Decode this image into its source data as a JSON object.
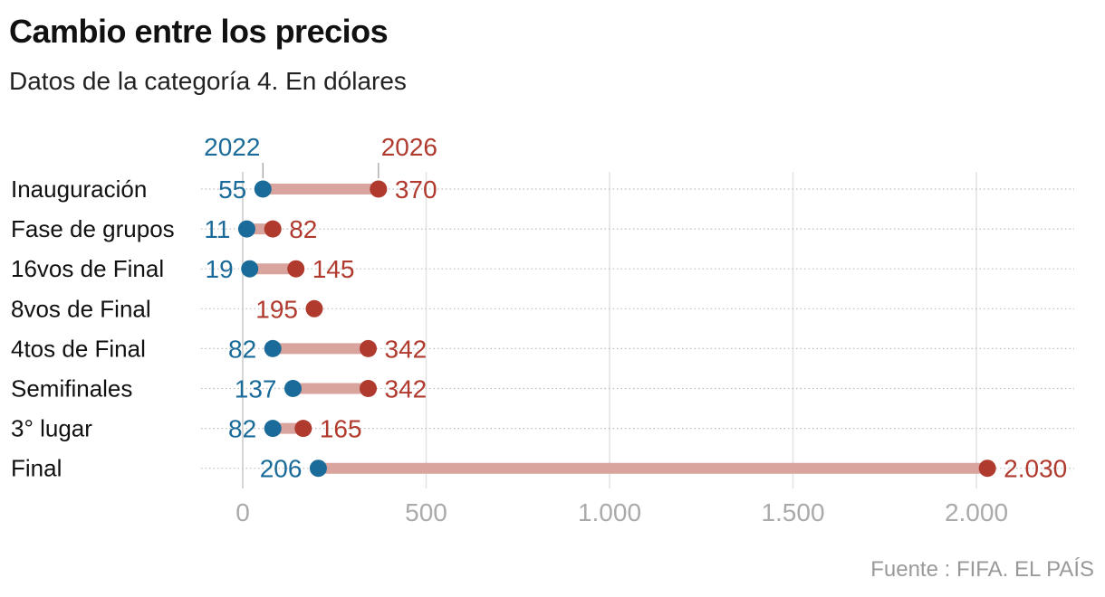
{
  "title": "Cambio entre los precios",
  "subtitle": "Datos de la categoría 4. En dólares",
  "source": "Fuente : FIFA. EL PAÍS",
  "colors": {
    "y2022": "#1a6b9a",
    "y2026": "#b03a2e",
    "connector": "#d9a39e"
  },
  "chart_data": {
    "type": "dumbbell",
    "xlim": [
      0,
      2250
    ],
    "xticks": [
      0,
      500,
      1000,
      1500,
      2000
    ],
    "xtick_labels": [
      "0",
      "500",
      "1.000",
      "1.500",
      "2.000"
    ],
    "grid": true,
    "legend": [
      {
        "name": "2022",
        "color": "#1a6b9a"
      },
      {
        "name": "2026",
        "color": "#b03a2e"
      }
    ],
    "categories": [
      "Inauguración",
      "Fase de grupos",
      "16vos de Final",
      "8vos de Final",
      "4tos de Final",
      "Semifinales",
      "3° lugar",
      "Final"
    ],
    "series": [
      {
        "name": "2022",
        "values": [
          55,
          11,
          19,
          null,
          82,
          137,
          82,
          206
        ],
        "labels": [
          "55",
          "11",
          "19",
          "",
          "82",
          "137",
          "82",
          "206"
        ]
      },
      {
        "name": "2026",
        "values": [
          370,
          82,
          145,
          195,
          342,
          342,
          165,
          2030
        ],
        "labels": [
          "370",
          "82",
          "145",
          "195",
          "342",
          "342",
          "165",
          "2.030"
        ]
      }
    ]
  }
}
